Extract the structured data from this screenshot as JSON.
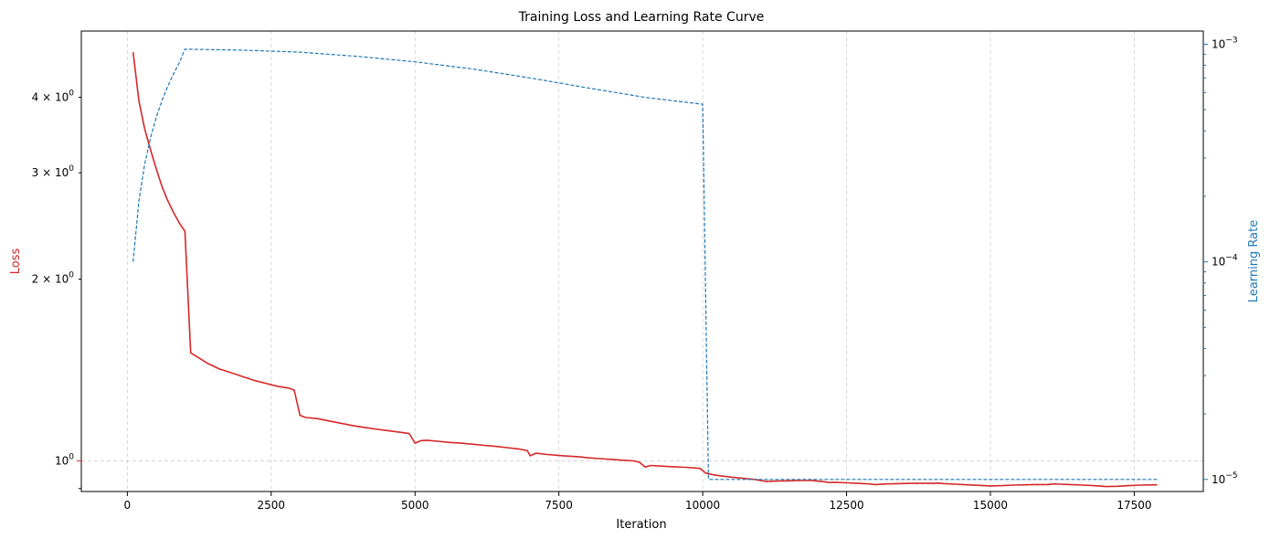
{
  "chart_data": {
    "type": "line",
    "title": "Training Loss and Learning Rate Curve",
    "xlabel": "Iteration",
    "ylabel": "Loss",
    "y2label": "Learning Rate",
    "xlim": [
      -800,
      18700
    ],
    "ylim": [
      0.89,
      5.15
    ],
    "y2lim": [
      8.8e-06,
      0.00115
    ],
    "yscale": "log",
    "y2scale": "log",
    "grid": true,
    "x_ticks": [
      0,
      2500,
      5000,
      7500,
      10000,
      12500,
      15000,
      17500
    ],
    "x_tick_labels": [
      "0",
      "2500",
      "5000",
      "7500",
      "10000",
      "12500",
      "15000",
      "17500"
    ],
    "y_major_ticks": [
      {
        "value": 1.0,
        "mantissa": "",
        "exp": "0"
      }
    ],
    "y_minor_labeled_ticks": [
      {
        "value": 2,
        "mantissa": "2 × 10",
        "exp": "0"
      },
      {
        "value": 3,
        "mantissa": "3 × 10",
        "exp": "0"
      },
      {
        "value": 4,
        "mantissa": "4 × 10",
        "exp": "0"
      }
    ],
    "y_minor_unlabeled_ticks": [
      0.9
    ],
    "y2_major_ticks": [
      {
        "value": 1e-05,
        "exp": "−5"
      },
      {
        "value": 0.0001,
        "exp": "−4"
      },
      {
        "value": 0.001,
        "exp": "−3"
      }
    ],
    "y2_minor_ticks": [
      2e-05,
      3e-05,
      4e-05,
      5e-05,
      6e-05,
      7e-05,
      8e-05,
      9e-05,
      0.0002,
      0.0003,
      0.0004,
      0.0005,
      0.0006,
      0.0007,
      0.0008,
      0.0009
    ],
    "series": [
      {
        "axis": "left",
        "color": "#d62728",
        "style": "solid",
        "x": [
          100,
          200,
          300,
          400,
          500,
          600,
          700,
          800,
          900,
          1000,
          1100,
          1200,
          1300,
          1400,
          1600,
          1800,
          2000,
          2200,
          2400,
          2600,
          2800,
          2900,
          3000,
          3100,
          3300,
          3500,
          3700,
          3900,
          4100,
          4300,
          4500,
          4700,
          4900,
          5000,
          5100,
          5200,
          5400,
          5600,
          5800,
          6000,
          6200,
          6400,
          6600,
          6800,
          6950,
          7000,
          7100,
          7300,
          7500,
          7700,
          7900,
          8000,
          8200,
          8400,
          8600,
          8800,
          8900,
          9000,
          9100,
          9300,
          9500,
          9700,
          9950,
          10050,
          10150,
          10300,
          10500,
          10700,
          10900,
          11100,
          11300,
          11500,
          11700,
          11900,
          12100,
          12200,
          12300,
          12500,
          12700,
          12900,
          13000,
          13200,
          13400,
          13600,
          13800,
          14000,
          14100,
          14200,
          14400,
          14600,
          14800,
          15000,
          15200,
          15400,
          15600,
          15800,
          16000,
          16100,
          16200,
          16400,
          16600,
          16800,
          17000,
          17200,
          17400,
          17600,
          17900
        ],
        "values": [
          4.75,
          3.95,
          3.55,
          3.28,
          3.05,
          2.85,
          2.7,
          2.58,
          2.48,
          2.4,
          1.51,
          1.49,
          1.47,
          1.45,
          1.42,
          1.4,
          1.38,
          1.36,
          1.345,
          1.33,
          1.32,
          1.31,
          1.19,
          1.18,
          1.175,
          1.165,
          1.155,
          1.145,
          1.137,
          1.13,
          1.123,
          1.117,
          1.11,
          1.07,
          1.08,
          1.082,
          1.078,
          1.073,
          1.07,
          1.066,
          1.061,
          1.057,
          1.052,
          1.047,
          1.04,
          1.02,
          1.03,
          1.025,
          1.021,
          1.018,
          1.015,
          1.012,
          1.009,
          1.006,
          1.003,
          1.0,
          0.995,
          0.977,
          0.983,
          0.98,
          0.978,
          0.976,
          0.972,
          0.955,
          0.95,
          0.945,
          0.94,
          0.936,
          0.932,
          0.925,
          0.926,
          0.927,
          0.928,
          0.928,
          0.924,
          0.921,
          0.922,
          0.92,
          0.918,
          0.916,
          0.914,
          0.916,
          0.917,
          0.918,
          0.918,
          0.918,
          0.919,
          0.917,
          0.915,
          0.913,
          0.911,
          0.909,
          0.91,
          0.912,
          0.913,
          0.914,
          0.914,
          0.916,
          0.915,
          0.914,
          0.912,
          0.91,
          0.907,
          0.908,
          0.91,
          0.912,
          0.913
        ]
      },
      {
        "axis": "right",
        "color": "#1f77b4",
        "style": "dashed",
        "x": [
          100,
          200,
          300,
          400,
          500,
          600,
          700,
          800,
          900,
          1000,
          2000,
          3000,
          4000,
          5000,
          6000,
          7000,
          8000,
          9000,
          10000,
          10100,
          11000,
          12000,
          13000,
          14000,
          15000,
          16000,
          17000,
          17900
        ],
        "values": [
          0.0001,
          0.00019,
          0.00028,
          0.00037,
          0.00046,
          0.00055,
          0.00064,
          0.00073,
          0.00082,
          0.00095,
          0.00094,
          0.00092,
          0.00088,
          0.00083,
          0.00077,
          0.0007,
          0.00063,
          0.00057,
          0.00053,
          1e-05,
          1e-05,
          1e-05,
          1e-05,
          1e-05,
          1e-05,
          1e-05,
          1e-05,
          1e-05
        ]
      }
    ]
  }
}
